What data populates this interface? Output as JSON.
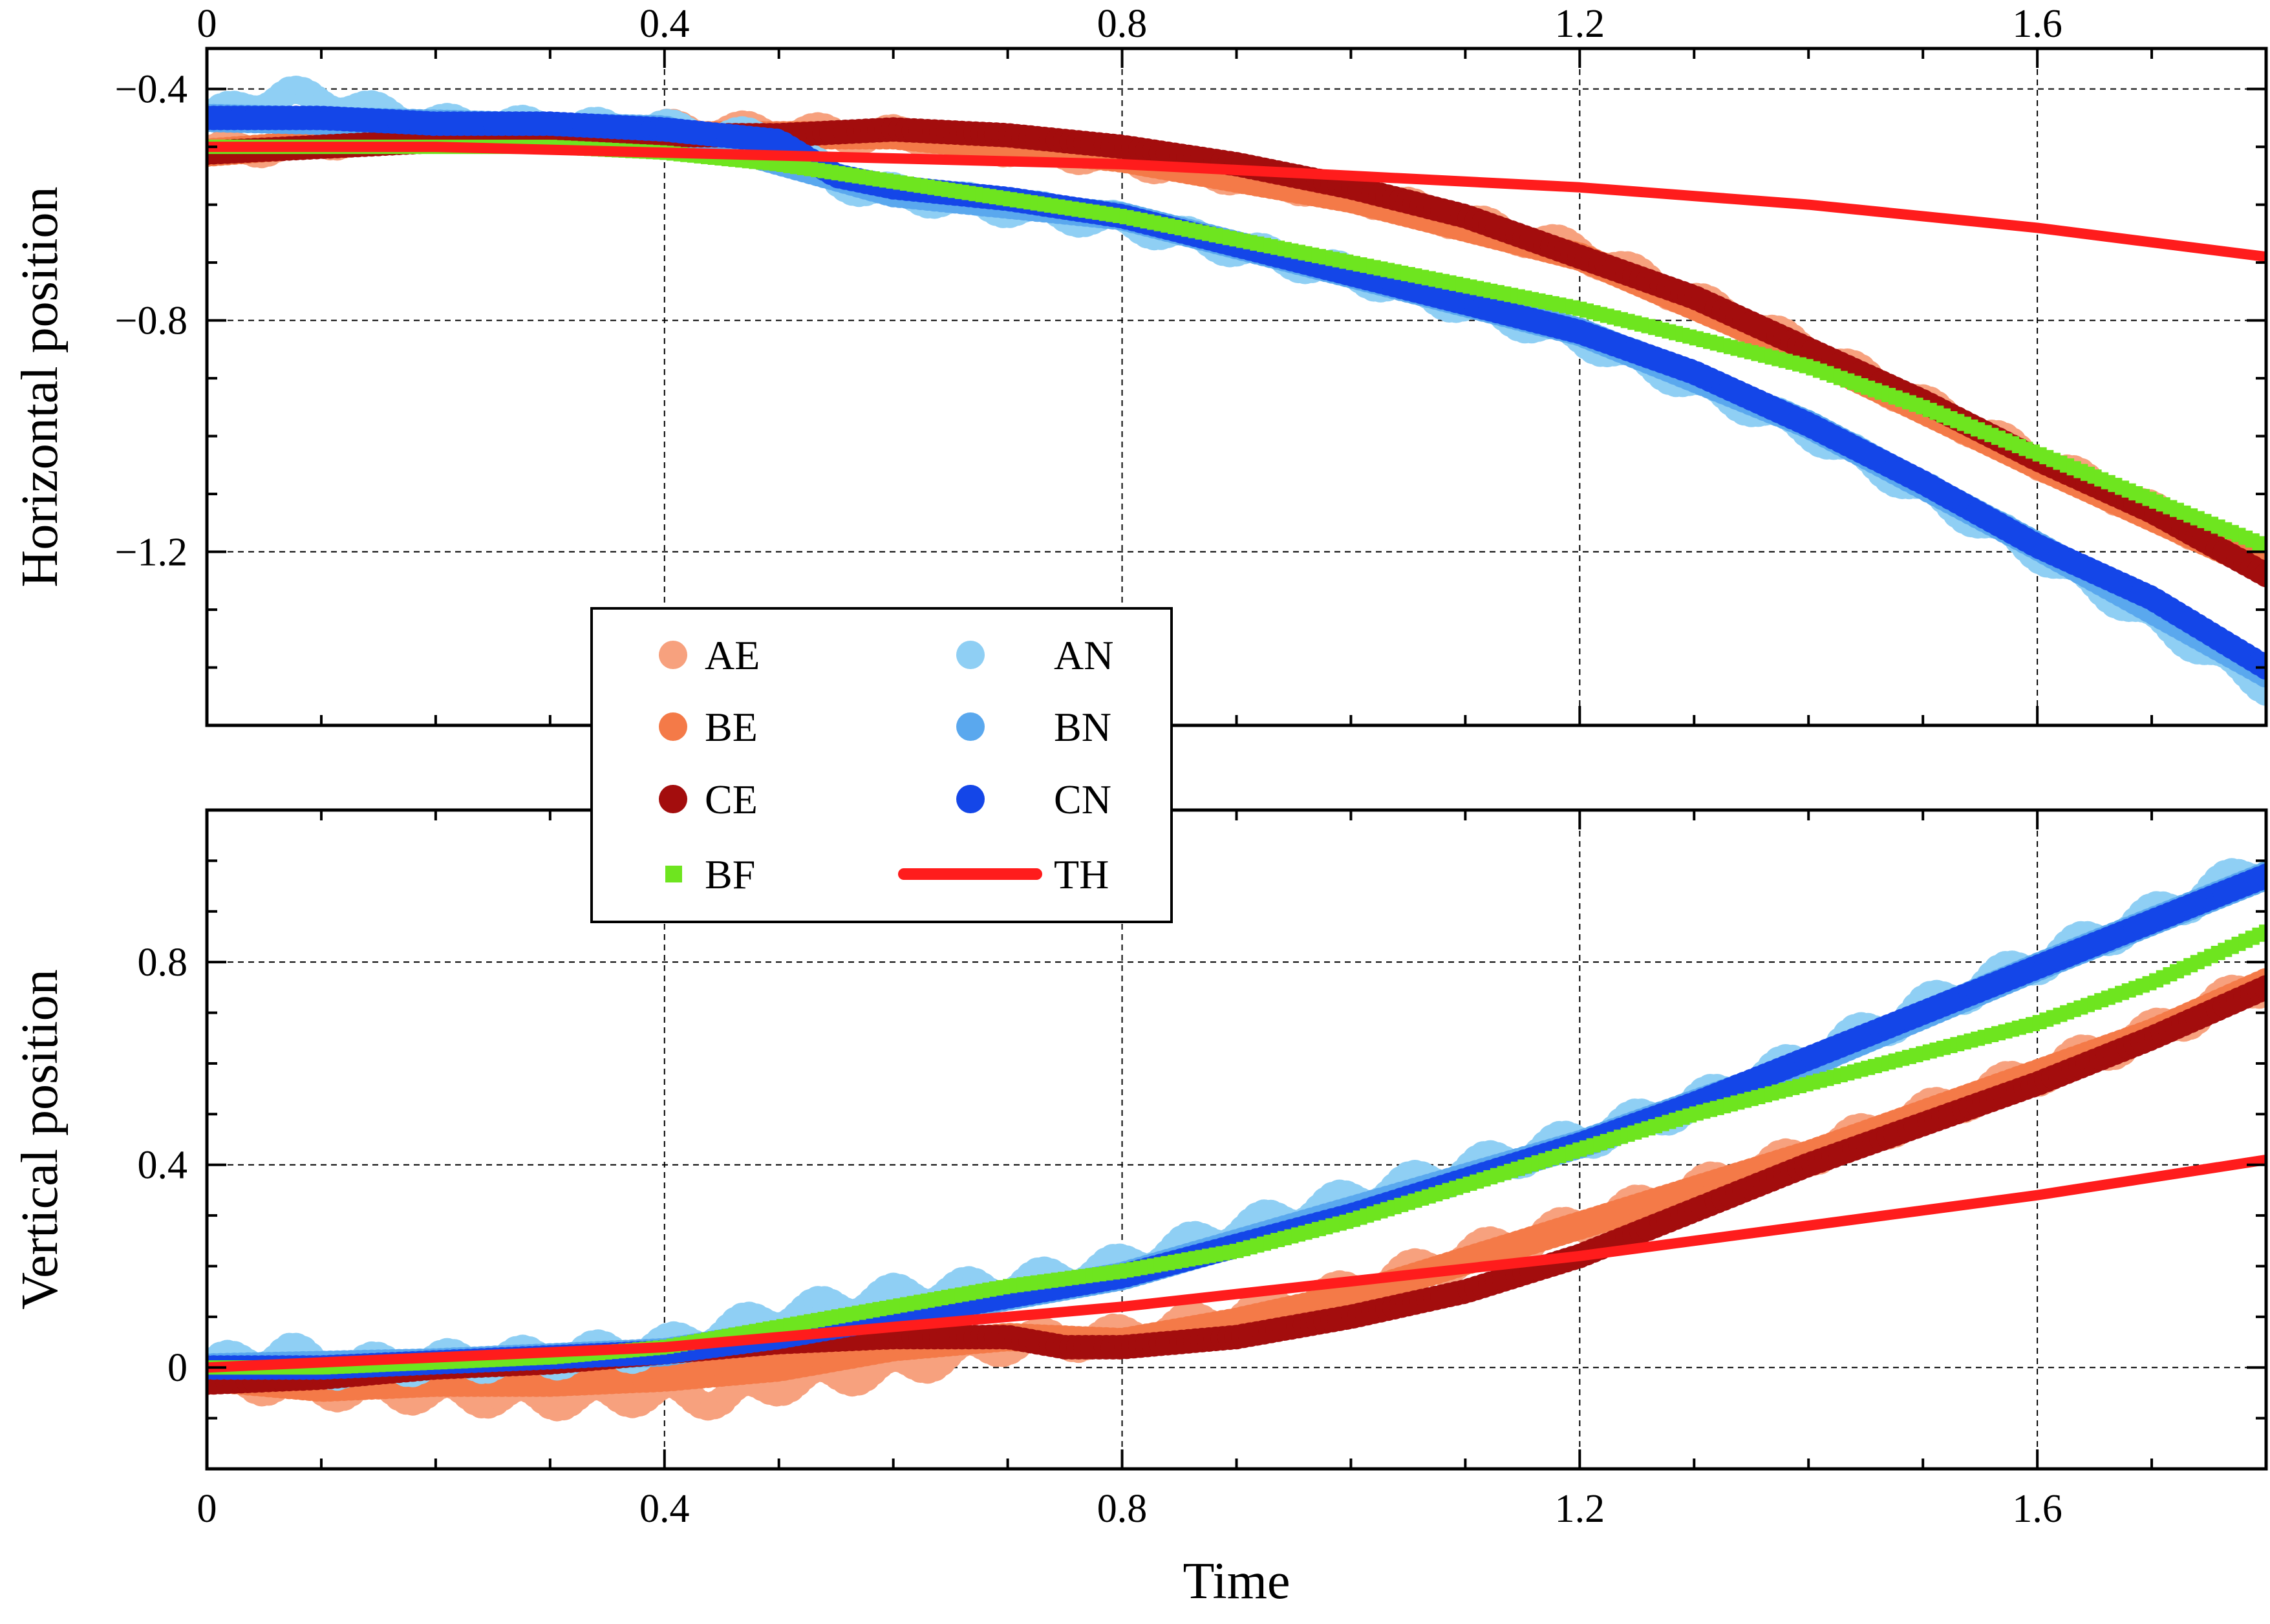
{
  "chart_data": [
    {
      "type": "line",
      "panel": "top",
      "ylabel": "Horizontal position",
      "xlabel": "",
      "x_ticks": [
        "0",
        "0.4",
        "0.8",
        "1.2",
        "1.6"
      ],
      "y_ticks": [
        "−0.4",
        "−0.8",
        "−1.2"
      ],
      "y_tick_values": [
        -0.4,
        -0.8,
        -1.2
      ],
      "xlim": [
        0,
        1.8
      ],
      "ylim": [
        -1.5,
        -0.33
      ],
      "grid": true,
      "series": [
        {
          "name": "AE",
          "color": "#f7a17e",
          "marker": "circle",
          "x": [
            0,
            0.2,
            0.4,
            0.6,
            0.8,
            1.0,
            1.2,
            1.4,
            1.6,
            1.8
          ],
          "y": [
            -0.51,
            -0.47,
            -0.47,
            -0.48,
            -0.52,
            -0.58,
            -0.68,
            -0.85,
            -1.04,
            -1.22
          ]
        },
        {
          "name": "BE",
          "color": "#f47a48",
          "marker": "circle",
          "x": [
            0,
            0.2,
            0.4,
            0.6,
            0.8,
            1.0,
            1.2,
            1.4,
            1.6,
            1.8
          ],
          "y": [
            -0.51,
            -0.48,
            -0.48,
            -0.48,
            -0.52,
            -0.59,
            -0.69,
            -0.86,
            -1.05,
            -1.23
          ]
        },
        {
          "name": "CE",
          "color": "#a30d0d",
          "marker": "circle",
          "x": [
            0,
            0.1,
            0.2,
            0.3,
            0.4,
            0.5,
            0.6,
            0.7,
            0.8,
            0.9,
            1.0,
            1.1,
            1.2,
            1.3,
            1.4,
            1.5,
            1.6,
            1.7,
            1.8
          ],
          "y": [
            -0.51,
            -0.5,
            -0.49,
            -0.49,
            -0.48,
            -0.48,
            -0.47,
            -0.48,
            -0.5,
            -0.53,
            -0.57,
            -0.62,
            -0.69,
            -0.76,
            -0.85,
            -0.94,
            -1.04,
            -1.13,
            -1.24
          ]
        },
        {
          "name": "BF",
          "color": "#6ee51f",
          "marker": "square",
          "x": [
            0,
            0.1,
            0.2,
            0.3,
            0.4,
            0.5,
            0.6,
            0.7,
            0.8,
            0.9,
            1.0,
            1.1,
            1.2,
            1.3,
            1.4,
            1.5,
            1.6,
            1.7,
            1.8
          ],
          "y": [
            -0.5,
            -0.5,
            -0.5,
            -0.5,
            -0.51,
            -0.53,
            -0.56,
            -0.59,
            -0.62,
            -0.66,
            -0.7,
            -0.74,
            -0.78,
            -0.83,
            -0.88,
            -0.95,
            -1.03,
            -1.11,
            -1.19
          ]
        },
        {
          "name": "TH",
          "color": "#ff1c1c",
          "marker": "line",
          "x": [
            0,
            0.2,
            0.4,
            0.6,
            0.8,
            1.0,
            1.2,
            1.4,
            1.6,
            1.8
          ],
          "y": [
            -0.5,
            -0.5,
            -0.51,
            -0.52,
            -0.53,
            -0.55,
            -0.57,
            -0.6,
            -0.64,
            -0.69
          ]
        },
        {
          "name": "AN",
          "color": "#8fcff4",
          "marker": "circle",
          "x": [
            0,
            0.07,
            0.2,
            0.4,
            0.5,
            0.55,
            0.6,
            0.8,
            1.0,
            1.2,
            1.4,
            1.6,
            1.8
          ],
          "y": [
            -0.45,
            -0.41,
            -0.46,
            -0.47,
            -0.49,
            -0.56,
            -0.58,
            -0.63,
            -0.72,
            -0.83,
            -0.99,
            -1.2,
            -1.43
          ]
        },
        {
          "name": "BN",
          "color": "#5aa8ee",
          "marker": "circle",
          "x": [
            0,
            0.2,
            0.4,
            0.6,
            0.8,
            1.0,
            1.2,
            1.4,
            1.6,
            1.8
          ],
          "y": [
            -0.45,
            -0.46,
            -0.47,
            -0.58,
            -0.62,
            -0.72,
            -0.82,
            -0.98,
            -1.19,
            -1.41
          ]
        },
        {
          "name": "CN",
          "color": "#1446e8",
          "marker": "circle",
          "x": [
            0,
            0.05,
            0.1,
            0.2,
            0.3,
            0.4,
            0.5,
            0.55,
            0.6,
            0.7,
            0.8,
            0.9,
            1.0,
            1.1,
            1.2,
            1.3,
            1.4,
            1.5,
            1.6,
            1.7,
            1.8
          ],
          "y": [
            -0.45,
            -0.45,
            -0.45,
            -0.46,
            -0.46,
            -0.47,
            -0.49,
            -0.55,
            -0.57,
            -0.59,
            -0.62,
            -0.67,
            -0.72,
            -0.77,
            -0.82,
            -0.89,
            -0.98,
            -1.08,
            -1.19,
            -1.28,
            -1.4
          ]
        }
      ]
    },
    {
      "type": "line",
      "panel": "bottom",
      "ylabel": "Vertical position",
      "xlabel": "Time",
      "x_ticks": [
        "0",
        "0.4",
        "0.8",
        "1.2",
        "1.6"
      ],
      "y_ticks": [
        "0",
        "0.4",
        "0.8"
      ],
      "y_tick_values": [
        0,
        0.4,
        0.8
      ],
      "xlim": [
        0,
        1.8
      ],
      "ylim": [
        -0.2,
        1.1
      ],
      "grid": true,
      "series": [
        {
          "name": "AE",
          "color": "#f7a17e",
          "marker": "circle",
          "x": [
            0,
            0.1,
            0.2,
            0.3,
            0.4,
            0.45,
            0.5,
            0.6,
            0.7,
            0.8,
            0.9,
            1.0,
            1.1,
            1.2,
            1.3,
            1.4,
            1.5,
            1.6,
            1.7,
            1.8
          ],
          "y": [
            -0.02,
            -0.04,
            -0.05,
            -0.06,
            -0.05,
            -0.06,
            -0.03,
            0.0,
            0.05,
            0.06,
            0.1,
            0.15,
            0.22,
            0.28,
            0.35,
            0.42,
            0.5,
            0.58,
            0.66,
            0.76
          ]
        },
        {
          "name": "BE",
          "color": "#f47a48",
          "marker": "circle",
          "x": [
            0,
            0.1,
            0.2,
            0.3,
            0.4,
            0.5,
            0.6,
            0.7,
            0.8,
            0.9,
            1.0,
            1.1,
            1.2,
            1.3,
            1.4,
            1.5,
            1.6,
            1.7,
            1.8
          ],
          "y": [
            -0.02,
            -0.04,
            -0.03,
            -0.03,
            -0.02,
            0.0,
            0.04,
            0.06,
            0.05,
            0.09,
            0.14,
            0.21,
            0.28,
            0.35,
            0.42,
            0.5,
            0.58,
            0.66,
            0.76
          ]
        },
        {
          "name": "CE",
          "color": "#a30d0d",
          "marker": "circle",
          "x": [
            0,
            0.1,
            0.2,
            0.3,
            0.4,
            0.5,
            0.6,
            0.7,
            0.75,
            0.8,
            0.9,
            1.0,
            1.1,
            1.2,
            1.3,
            1.4,
            1.5,
            1.6,
            1.7,
            1.8
          ],
          "y": [
            -0.03,
            -0.02,
            0.0,
            0.01,
            0.03,
            0.05,
            0.06,
            0.06,
            0.04,
            0.04,
            0.06,
            0.1,
            0.15,
            0.22,
            0.31,
            0.4,
            0.48,
            0.56,
            0.65,
            0.75
          ]
        },
        {
          "name": "BF",
          "color": "#6ee51f",
          "marker": "square",
          "x": [
            0,
            0.1,
            0.2,
            0.3,
            0.4,
            0.5,
            0.6,
            0.7,
            0.8,
            0.9,
            1.0,
            1.1,
            1.2,
            1.3,
            1.4,
            1.5,
            1.6,
            1.7,
            1.8
          ],
          "y": [
            0.0,
            0.0,
            0.01,
            0.02,
            0.04,
            0.08,
            0.12,
            0.16,
            0.19,
            0.23,
            0.29,
            0.36,
            0.43,
            0.5,
            0.56,
            0.62,
            0.68,
            0.76,
            0.86
          ]
        },
        {
          "name": "TH",
          "color": "#ff1c1c",
          "marker": "line",
          "x": [
            0,
            0.2,
            0.4,
            0.6,
            0.8,
            1.0,
            1.2,
            1.4,
            1.6,
            1.8
          ],
          "y": [
            0.0,
            0.02,
            0.04,
            0.08,
            0.12,
            0.17,
            0.22,
            0.28,
            0.34,
            0.41
          ]
        },
        {
          "name": "AN",
          "color": "#8fcff4",
          "marker": "circle",
          "x": [
            0,
            0.07,
            0.1,
            0.2,
            0.3,
            0.4,
            0.5,
            0.6,
            0.7,
            0.8,
            0.9,
            1.0,
            1.1,
            1.2,
            1.3,
            1.4,
            1.5,
            1.6,
            1.7,
            1.8
          ],
          "y": [
            0.0,
            0.03,
            0.0,
            0.01,
            0.02,
            0.04,
            0.1,
            0.14,
            0.16,
            0.2,
            0.27,
            0.33,
            0.39,
            0.45,
            0.52,
            0.61,
            0.71,
            0.8,
            0.89,
            0.99
          ]
        },
        {
          "name": "BN",
          "color": "#5aa8ee",
          "marker": "circle",
          "x": [
            0,
            0.2,
            0.4,
            0.6,
            0.8,
            1.0,
            1.2,
            1.4,
            1.6,
            1.8
          ],
          "y": [
            0.0,
            0.01,
            0.03,
            0.1,
            0.18,
            0.31,
            0.44,
            0.6,
            0.79,
            0.97
          ]
        },
        {
          "name": "CN",
          "color": "#1446e8",
          "marker": "circle",
          "x": [
            0,
            0.1,
            0.2,
            0.3,
            0.4,
            0.5,
            0.6,
            0.7,
            0.8,
            0.9,
            1.0,
            1.1,
            1.2,
            1.3,
            1.4,
            1.5,
            1.6,
            1.7,
            1.8
          ],
          "y": [
            0.0,
            0.0,
            0.01,
            0.02,
            0.03,
            0.06,
            0.1,
            0.14,
            0.18,
            0.24,
            0.3,
            0.37,
            0.44,
            0.52,
            0.61,
            0.7,
            0.79,
            0.88,
            0.97
          ]
        }
      ]
    }
  ],
  "legend": {
    "entries": [
      {
        "name": "AE",
        "color": "#f7a17e",
        "marker": "circle"
      },
      {
        "name": "BE",
        "color": "#f47a48",
        "marker": "circle"
      },
      {
        "name": "CE",
        "color": "#a30d0d",
        "marker": "circle"
      },
      {
        "name": "BF",
        "color": "#6ee51f",
        "marker": "square"
      },
      {
        "name": "AN",
        "color": "#8fcff4",
        "marker": "circle"
      },
      {
        "name": "BN",
        "color": "#5aa8ee",
        "marker": "circle"
      },
      {
        "name": "CN",
        "color": "#1446e8",
        "marker": "circle"
      },
      {
        "name": "TH",
        "color": "#ff1c1c",
        "marker": "line"
      }
    ],
    "placement": "center-left, spanning both panels"
  }
}
